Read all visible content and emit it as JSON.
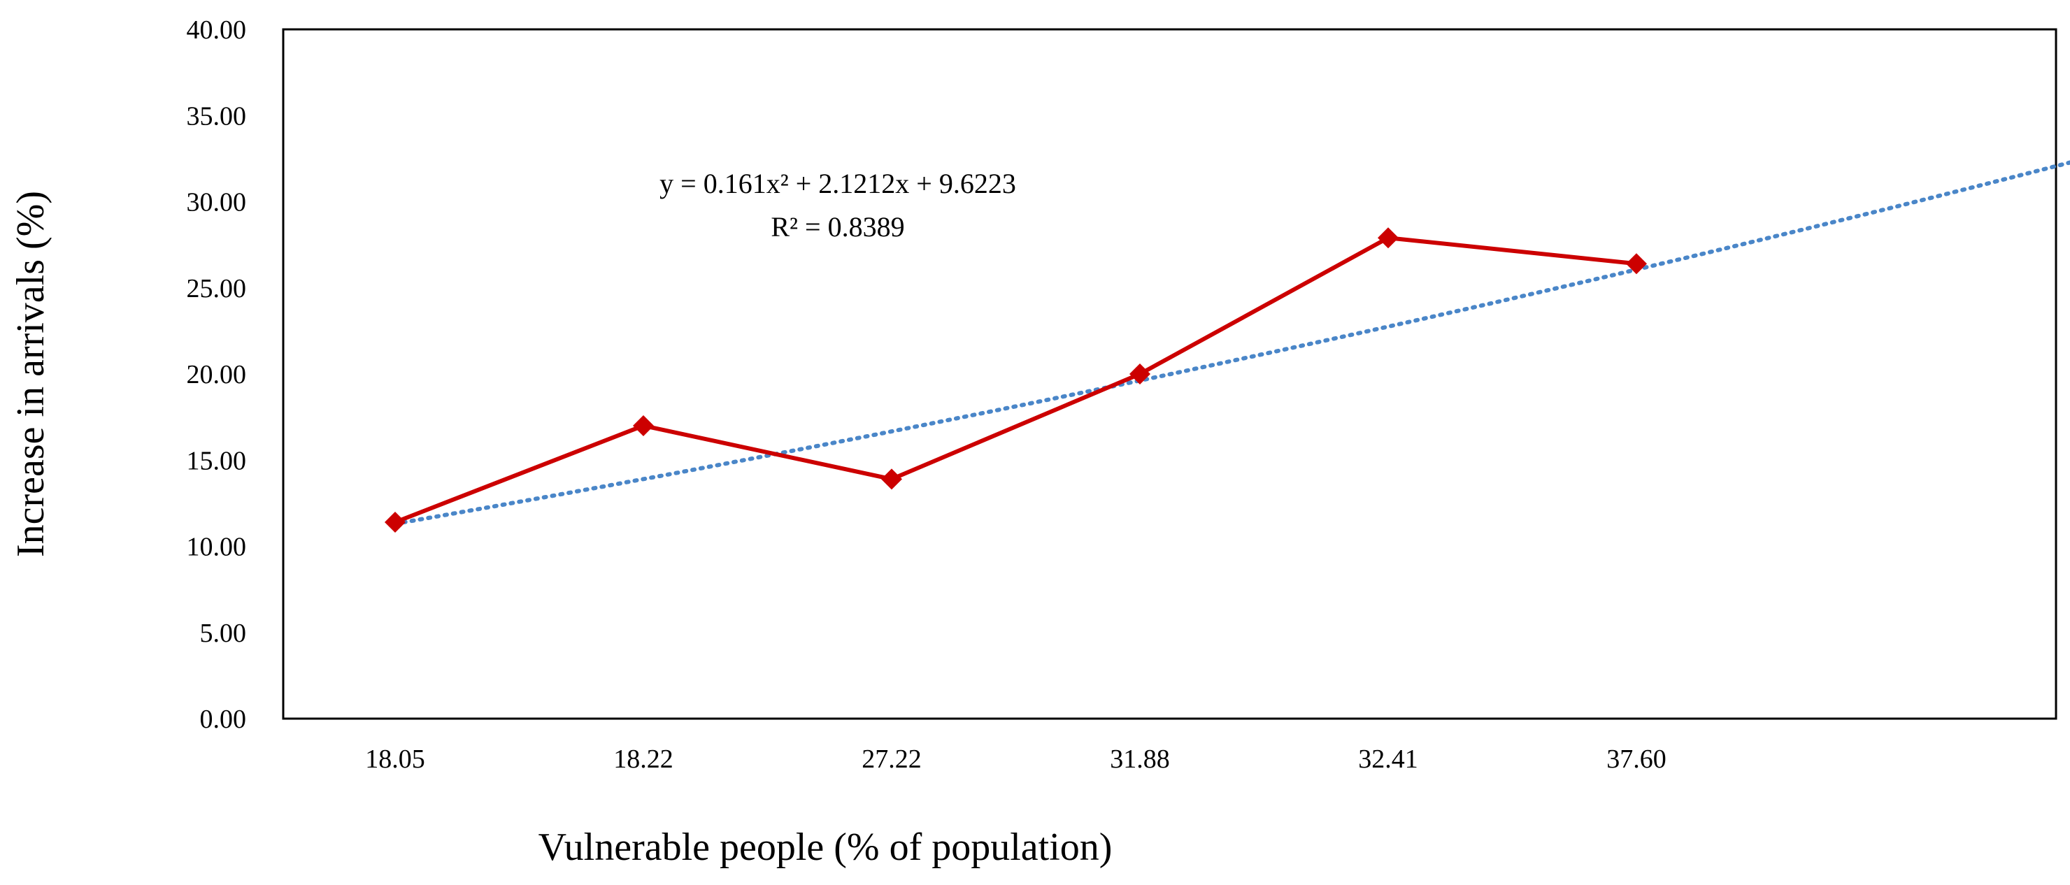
{
  "chart_data": {
    "type": "line",
    "title": "",
    "xlabel": "Vulnerable people (% of population)",
    "ylabel": "Increase in arrivals (%)",
    "categories": [
      "18.05",
      "18.22",
      "27.22",
      "31.88",
      "32.41",
      "37.60"
    ],
    "ylim": [
      0,
      40
    ],
    "yticks": [
      "0.00",
      "5.00",
      "10.00",
      "15.00",
      "20.00",
      "25.00",
      "30.00",
      "35.00",
      "40.00"
    ],
    "grid": false,
    "series": [
      {
        "name": "Increase in arrivals",
        "values": [
          11.4,
          17.0,
          13.9,
          20.0,
          27.9,
          26.4
        ],
        "color": "#cc0000",
        "marker": "diamond"
      }
    ],
    "trendline": {
      "type": "polynomial",
      "style": "dotted",
      "color": "#4a86c8",
      "x_range": [
        1,
        8.7
      ],
      "equation": "y = 0.161x² + 2.1212x + 9.6223",
      "r_squared": "R² = 0.8389"
    }
  }
}
